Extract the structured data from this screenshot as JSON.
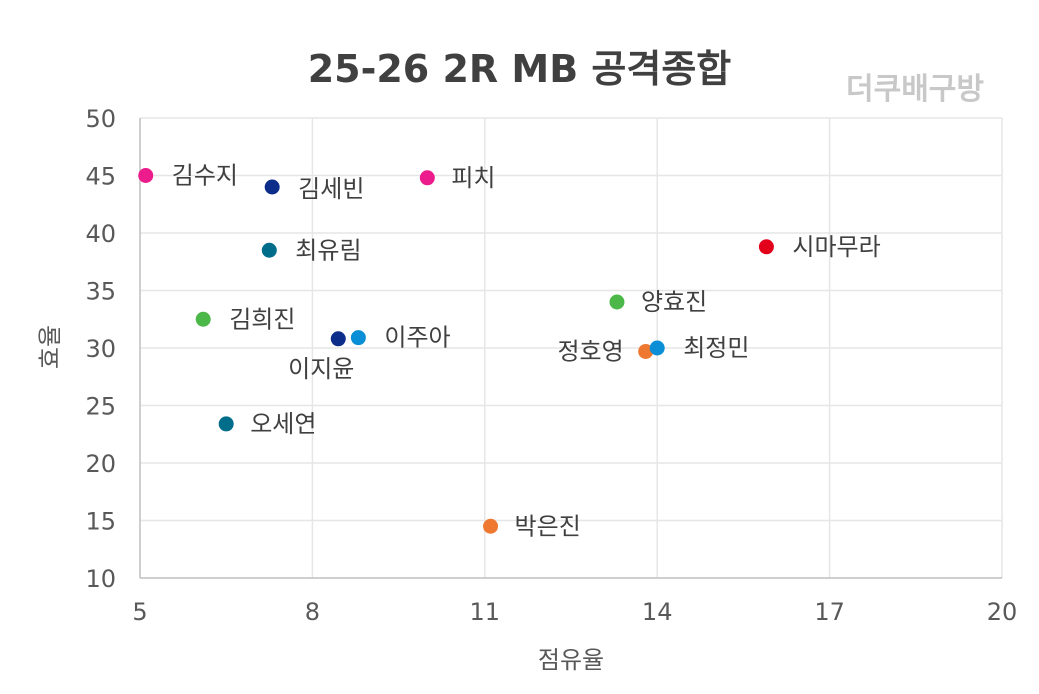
{
  "chart_data": {
    "type": "scatter",
    "title": "25-26  2R MB 공격종합",
    "watermark": "더쿠배구방",
    "xlabel": "점유율",
    "ylabel": "효율",
    "xlim": [
      5,
      20
    ],
    "ylim": [
      10,
      50
    ],
    "xticks": [
      5,
      8,
      11,
      14,
      17,
      20
    ],
    "yticks": [
      10,
      15,
      20,
      25,
      30,
      35,
      40,
      45,
      50
    ],
    "grid": true,
    "points": [
      {
        "label": "김수지",
        "x": 5.1,
        "y": 45.0,
        "color": "#ec1c8c"
      },
      {
        "label": "김세빈",
        "x": 7.3,
        "y": 44.0,
        "color": "#0d2d8a"
      },
      {
        "label": "피치",
        "x": 10.0,
        "y": 44.8,
        "color": "#ec1c8c"
      },
      {
        "label": "최유림",
        "x": 7.25,
        "y": 38.5,
        "color": "#006d8a"
      },
      {
        "label": "시마무라",
        "x": 15.9,
        "y": 38.8,
        "color": "#e3001b"
      },
      {
        "label": "김희진",
        "x": 6.1,
        "y": 32.5,
        "color": "#4db84a"
      },
      {
        "label": "양효진",
        "x": 13.3,
        "y": 34.0,
        "color": "#4db84a"
      },
      {
        "label": "이지윤",
        "x": 8.45,
        "y": 30.8,
        "color": "#0d2d8a"
      },
      {
        "label": "이주아",
        "x": 8.8,
        "y": 30.9,
        "color": "#0a8fd6"
      },
      {
        "label": "정호영",
        "x": 13.8,
        "y": 29.7,
        "color": "#ef7830"
      },
      {
        "label": "최정민",
        "x": 14.0,
        "y": 30.0,
        "color": "#0a8fd6"
      },
      {
        "label": "오세연",
        "x": 6.5,
        "y": 23.4,
        "color": "#006d8a"
      },
      {
        "label": "박은진",
        "x": 11.1,
        "y": 14.5,
        "color": "#ef7830"
      }
    ]
  }
}
